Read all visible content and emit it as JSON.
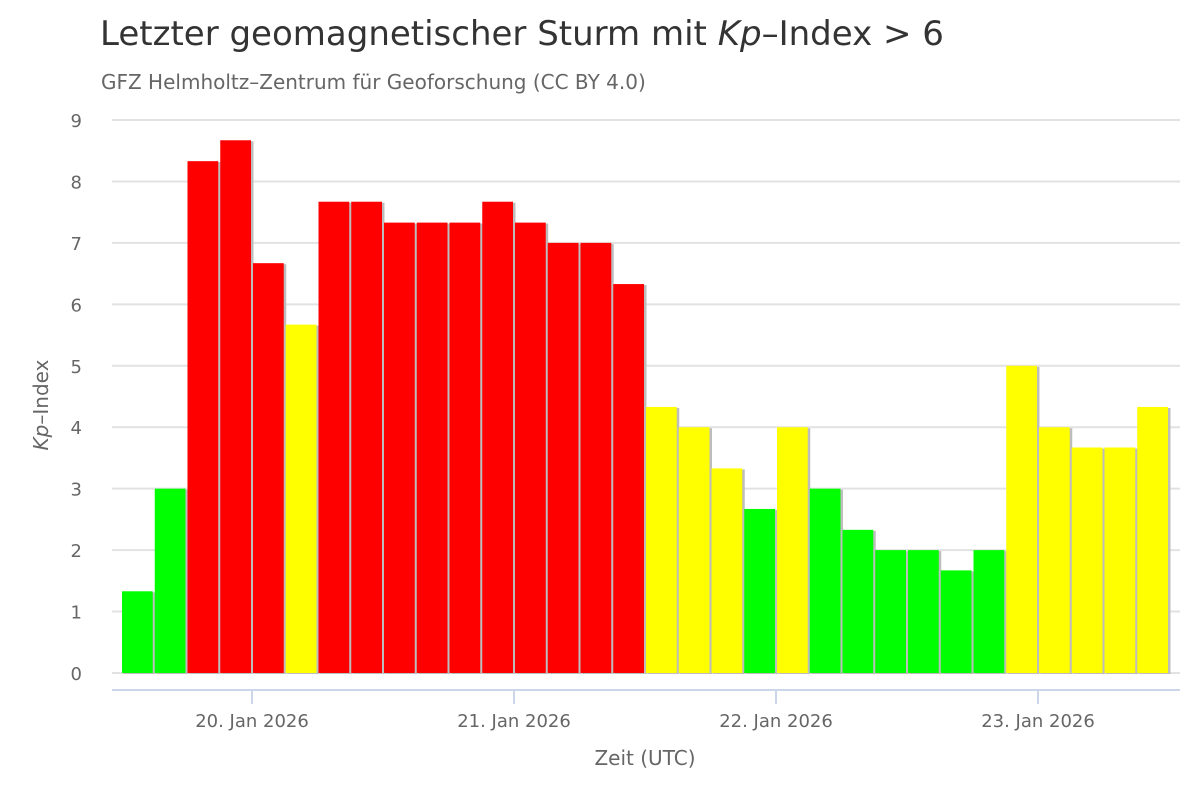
{
  "chart_data": {
    "type": "bar",
    "title_parts": [
      "Letzter geomagnetischer Sturm mit ",
      "Kp",
      "–Index > 6"
    ],
    "subtitle": "GFZ Helmholtz–Zentrum für Geoforschung (CC BY 4.0)",
    "xlabel": "Zeit (UTC)",
    "ylabel_parts": [
      "Kp",
      "–Index"
    ],
    "ylim": [
      0,
      9
    ],
    "yticks": [
      "0",
      "1",
      "2",
      "3",
      "4",
      "5",
      "6",
      "7",
      "8",
      "9"
    ],
    "x_interval_hours": 3,
    "x_start": "19. Jan 2026 12:00",
    "xtick_labels": [
      "20. Jan 2026",
      "21. Jan 2026",
      "22. Jan 2026",
      "23. Jan 2026"
    ],
    "xtick_bar_index": [
      4,
      12,
      20,
      28
    ],
    "values": [
      1.33,
      3.0,
      8.33,
      8.67,
      6.67,
      5.67,
      7.67,
      7.67,
      7.33,
      7.33,
      7.33,
      7.67,
      7.33,
      7.0,
      7.0,
      6.33,
      4.33,
      4.0,
      3.33,
      2.67,
      4.0,
      3.0,
      2.33,
      2.0,
      2.0,
      1.67,
      2.0,
      5.0,
      4.0,
      3.67,
      3.67,
      4.33
    ],
    "colors": {
      "low": "#00ff00",
      "medium": "#ffff00",
      "high": "#ff0000"
    },
    "levels": [
      "low",
      "low",
      "high",
      "high",
      "high",
      "medium",
      "high",
      "high",
      "high",
      "high",
      "high",
      "high",
      "high",
      "high",
      "high",
      "high",
      "medium",
      "medium",
      "medium",
      "low",
      "medium",
      "low",
      "low",
      "low",
      "low",
      "low",
      "low",
      "medium",
      "medium",
      "medium",
      "medium",
      "medium"
    ],
    "grid": true,
    "legend": "none"
  }
}
